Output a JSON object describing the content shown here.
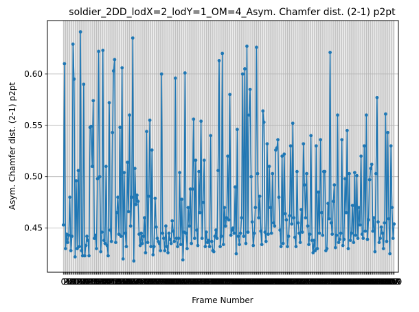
{
  "chart_data": {
    "type": "line",
    "title": "soldier_2DD_lodX=2_lodY=1_OM=4_Asym. Chamfer dist. (2-1) p2pt",
    "xlabel": "Frame Number",
    "ylabel": "Asym. Chamfer dist. (2-1) p2pt",
    "xlim": [
      -15,
      314
    ],
    "ylim": [
      0.407,
      0.652
    ],
    "yticks": [
      0.45,
      0.5,
      0.55,
      0.6
    ],
    "grid": true,
    "line_color": "#1f77b4",
    "marker": "circle",
    "x_tick_labels_note": "overlapping unreadable frame-number labels",
    "series": [
      {
        "values": [
          0.453,
          0.61,
          0.43,
          0.444,
          0.436,
          0.443,
          0.48,
          0.428,
          0.442,
          0.629,
          0.595,
          0.422,
          0.496,
          0.43,
          0.506,
          0.432,
          0.641,
          0.428,
          0.423,
          0.59,
          0.423,
          0.433,
          0.442,
          0.438,
          0.423,
          0.548,
          0.549,
          0.51,
          0.574,
          0.44,
          0.443,
          0.43,
          0.498,
          0.622,
          0.5,
          0.427,
          0.446,
          0.623,
          0.438,
          0.435,
          0.51,
          0.433,
          0.423,
          0.572,
          0.448,
          0.437,
          0.543,
          0.603,
          0.614,
          0.436,
          0.465,
          0.48,
          0.444,
          0.548,
          0.442,
          0.606,
          0.42,
          0.504,
          0.445,
          0.432,
          0.514,
          0.466,
          0.56,
          0.452,
          0.48,
          0.635,
          0.418,
          0.508,
          0.473,
          0.482,
          0.476,
          0.444,
          0.433,
          0.445,
          0.435,
          0.442,
          0.46,
          0.426,
          0.544,
          0.436,
          0.481,
          0.555,
          0.432,
          0.526,
          0.424,
          0.432,
          0.479,
          0.451,
          0.44,
          0.437,
          0.435,
          0.428,
          0.6,
          0.445,
          0.44,
          0.428,
          0.452,
          0.432,
          0.426,
          0.445,
          0.439,
          0.435,
          0.457,
          0.447,
          0.437,
          0.596,
          0.44,
          0.432,
          0.44,
          0.504,
          0.434,
          0.478,
          0.419,
          0.446,
          0.601,
          0.445,
          0.43,
          0.47,
          0.452,
          0.488,
          0.435,
          0.488,
          0.556,
          0.44,
          0.516,
          0.448,
          0.433,
          0.505,
          0.465,
          0.554,
          0.44,
          0.475,
          0.516,
          0.432,
          0.446,
          0.436,
          0.438,
          0.432,
          0.54,
          0.437,
          0.428,
          0.427,
          0.442,
          0.448,
          0.44,
          0.506,
          0.613,
          0.432,
          0.442,
          0.62,
          0.434,
          0.47,
          0.452,
          0.46,
          0.52,
          0.458,
          0.58,
          0.443,
          0.448,
          0.45,
          0.445,
          0.49,
          0.425,
          0.546,
          0.442,
          0.434,
          0.445,
          0.46,
          0.6,
          0.442,
          0.605,
          0.435,
          0.627,
          0.446,
          0.56,
          0.585,
          0.5,
          0.456,
          0.433,
          0.445,
          0.47,
          0.626,
          0.503,
          0.46,
          0.481,
          0.447,
          0.434,
          0.564,
          0.553,
          0.446,
          0.437,
          0.532,
          0.444,
          0.51,
          0.47,
          0.445,
          0.503,
          0.455,
          0.452,
          0.526,
          0.528,
          0.536,
          0.48,
          0.448,
          0.432,
          0.52,
          0.435,
          0.522,
          0.464,
          0.458,
          0.432,
          0.442,
          0.462,
          0.53,
          0.454,
          0.552,
          0.46,
          0.441,
          0.432,
          0.505,
          0.455,
          0.445,
          0.436,
          0.468,
          0.446,
          0.532,
          0.492,
          0.46,
          0.503,
          0.452,
          0.434,
          0.444,
          0.54,
          0.438,
          0.426,
          0.438,
          0.428,
          0.53,
          0.43,
          0.485,
          0.445,
          0.536,
          0.465,
          0.443,
          0.505,
          0.505,
          0.428,
          0.43,
          0.474,
          0.459,
          0.621,
          0.455,
          0.444,
          0.476,
          0.492,
          0.431,
          0.443,
          0.56,
          0.436,
          0.439,
          0.445,
          0.536,
          0.433,
          0.439,
          0.498,
          0.465,
          0.545,
          0.43,
          0.503,
          0.438,
          0.445,
          0.472,
          0.436,
          0.504,
          0.443,
          0.501,
          0.44,
          0.47,
          0.453,
          0.52,
          0.444,
          0.44,
          0.53,
          0.447,
          0.56,
          0.439,
          0.458,
          0.497,
          0.508,
          0.512,
          0.447,
          0.46,
          0.427,
          0.503,
          0.577,
          0.456,
          0.436,
          0.44,
          0.451,
          0.445,
          0.43,
          0.455,
          0.561,
          0.437,
          0.543,
          0.459,
          0.425,
          0.53,
          0.47,
          0.44,
          0.454
        ]
      }
    ]
  }
}
